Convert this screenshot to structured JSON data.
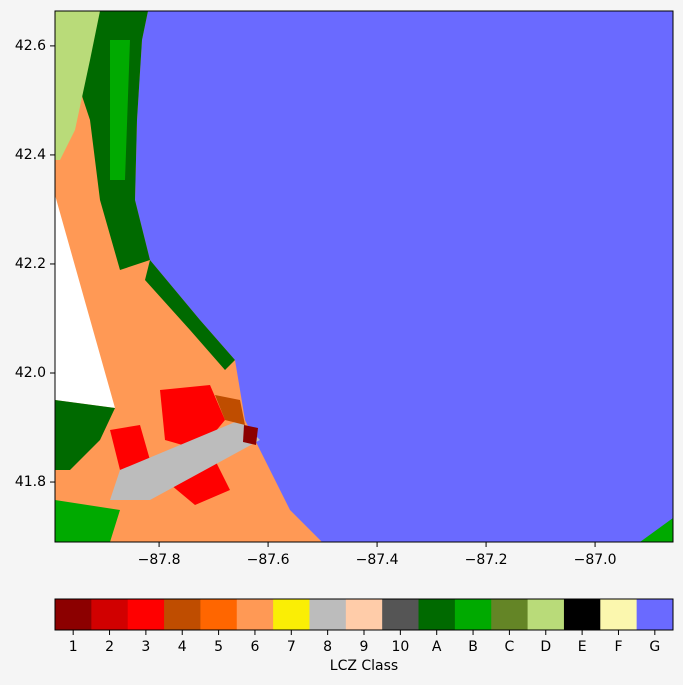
{
  "chart_data": {
    "type": "map",
    "xlim": [
      -87.991,
      -86.857
    ],
    "ylim": [
      41.69,
      42.664
    ],
    "xticks": [
      {
        "value": -87.8,
        "label": "−87.8"
      },
      {
        "value": -87.6,
        "label": "−87.6"
      },
      {
        "value": -87.4,
        "label": "−87.4"
      },
      {
        "value": -87.2,
        "label": "−87.2"
      },
      {
        "value": -87.0,
        "label": "−87.0"
      }
    ],
    "yticks": [
      41.8,
      {
        "value": 42.0,
        "label": "42.0"
      },
      42.2,
      42.4,
      42.6
    ],
    "colorbar": {
      "label": "LCZ Class",
      "categories": [
        "1",
        "2",
        "3",
        "4",
        "5",
        "6",
        "7",
        "8",
        "9",
        "10",
        "A",
        "B",
        "C",
        "D",
        "E",
        "F",
        "G"
      ],
      "colors": [
        "#8c0000",
        "#d10000",
        "#ff0000",
        "#bf4d00",
        "#ff6600",
        "#ff9955",
        "#faee05",
        "#bcbcbc",
        "#ffcca9",
        "#555555",
        "#006a00",
        "#00aa00",
        "#648526",
        "#b9db79",
        "#000000",
        "#fbf7ae",
        "#6a6aff"
      ]
    }
  }
}
